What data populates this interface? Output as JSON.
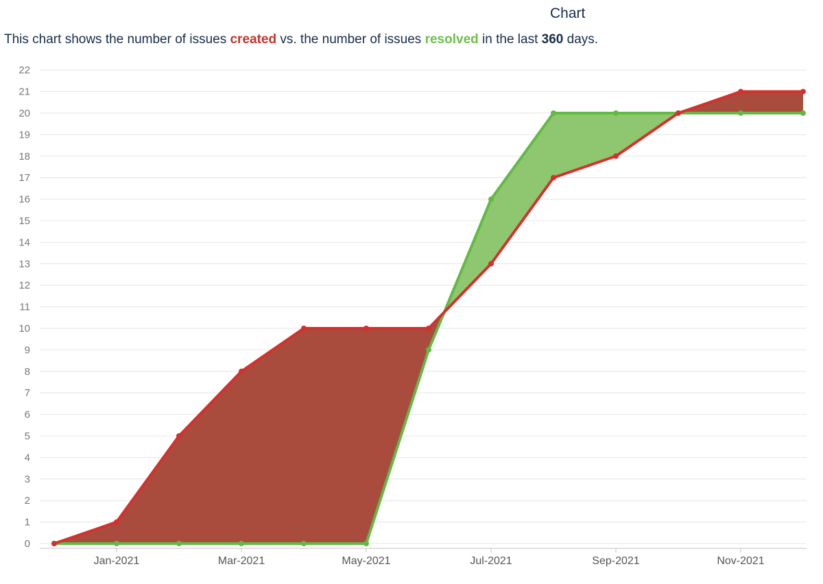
{
  "header": {
    "title": "Chart",
    "desc_prefix": "This chart shows the number of issues ",
    "desc_created": "created",
    "desc_middle": " vs. the number of issues ",
    "desc_resolved": "resolved",
    "desc_suffix": " in the last ",
    "desc_days": "360",
    "desc_end": " days."
  },
  "colors": {
    "created": "#d3312d",
    "resolved": "#63b945",
    "created_fill": "#a94c3e",
    "resolved_fill": "#8ec76f",
    "grid": "#e4e4e4",
    "axis": "#c0c0c0"
  },
  "chart_data": {
    "type": "area",
    "title": "",
    "xlabel": "",
    "ylabel": "",
    "ylim": [
      0,
      22
    ],
    "xlim": [
      "2020-12",
      "2021-12"
    ],
    "x_tick_labels": [
      "Jan-2021",
      "Mar-2021",
      "May-2021",
      "Jul-2021",
      "Sep-2021",
      "Nov-2021"
    ],
    "x_tick_dates": [
      "2021-01",
      "2021-03",
      "2021-05",
      "2021-07",
      "2021-09",
      "2021-11"
    ],
    "x": [
      "2020-12",
      "2021-01",
      "2021-02",
      "2021-03",
      "2021-04",
      "2021-05",
      "2021-06",
      "2021-07",
      "2021-08",
      "2021-09",
      "2021-10",
      "2021-11",
      "2021-12"
    ],
    "series": [
      {
        "name": "created",
        "values": [
          0,
          1,
          5,
          8,
          10,
          10,
          10,
          13,
          17,
          18,
          20,
          21,
          21
        ]
      },
      {
        "name": "resolved",
        "values": [
          0,
          0,
          0,
          0,
          0,
          0,
          9,
          16,
          20,
          20,
          20,
          20,
          20
        ]
      }
    ],
    "grid": true,
    "legend": "none"
  }
}
